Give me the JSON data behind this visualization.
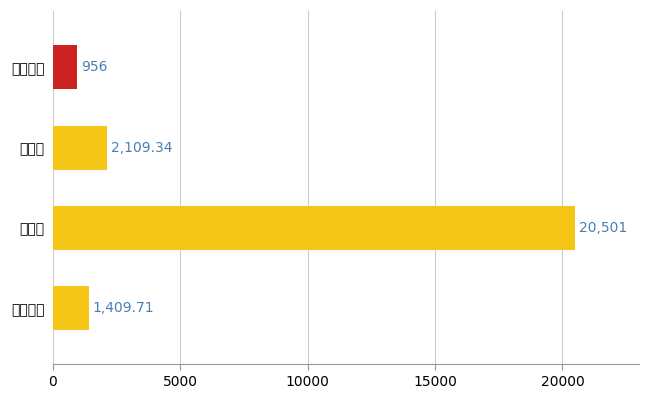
{
  "categories": [
    "阿賀野市",
    "県平均",
    "県最大",
    "全国平均"
  ],
  "values": [
    956,
    2109.34,
    20501,
    1409.71
  ],
  "labels": [
    "956",
    "2,109.34",
    "20,501",
    "1,409.71"
  ],
  "bar_colors": [
    "#cc2222",
    "#f5c518",
    "#f5c518",
    "#f5c518"
  ],
  "xlim": [
    0,
    23000
  ],
  "xticks": [
    0,
    5000,
    10000,
    15000,
    20000
  ],
  "grid_color": "#cccccc",
  "background_color": "#ffffff",
  "label_fontsize": 10,
  "tick_fontsize": 10,
  "value_label_color": "#4a7fb5",
  "bar_height": 0.55
}
